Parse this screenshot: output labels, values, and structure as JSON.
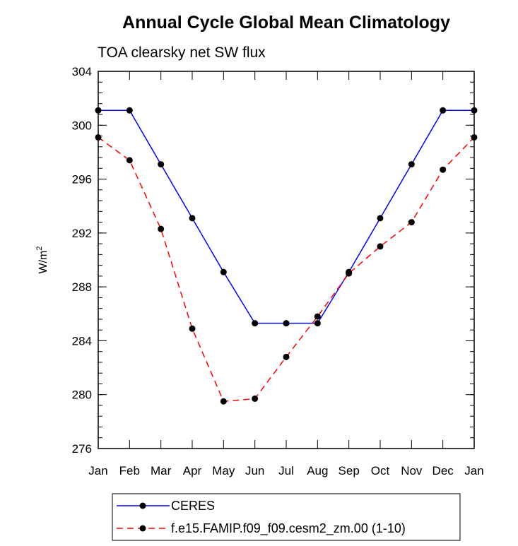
{
  "chart_data": {
    "type": "line",
    "title": "Annual Cycle Global Mean Climatology",
    "subtitle": "TOA clearsky net SW flux",
    "ylabel_base": "W/m",
    "ylabel_sup": "2",
    "xlabel": "",
    "categories": [
      "Jan",
      "Feb",
      "Mar",
      "Apr",
      "May",
      "Jun",
      "Jul",
      "Aug",
      "Sep",
      "Oct",
      "Nov",
      "Dec",
      "Jan"
    ],
    "ylim": [
      276,
      304
    ],
    "yticks": [
      "276",
      "280",
      "284",
      "288",
      "292",
      "296",
      "300",
      "304"
    ],
    "grid": false,
    "legend_position": "bottom",
    "series": [
      {
        "name": "CERES",
        "color": "#0000ff",
        "dash": "solid",
        "marker": "circle",
        "values": [
          301.1,
          301.1,
          297.1,
          293.1,
          289.1,
          285.3,
          285.3,
          285.3,
          289.1,
          293.1,
          297.1,
          301.1,
          301.1
        ]
      },
      {
        "name": "f.e15.FAMIP.f09_f09.cesm2_zm.00 (1-10)",
        "color": "#ff0000",
        "dash": "dashed",
        "marker": "circle",
        "values": [
          299.1,
          297.4,
          292.3,
          284.9,
          279.5,
          279.7,
          282.8,
          285.8,
          289.0,
          291.0,
          292.8,
          296.7,
          299.1
        ]
      }
    ]
  }
}
